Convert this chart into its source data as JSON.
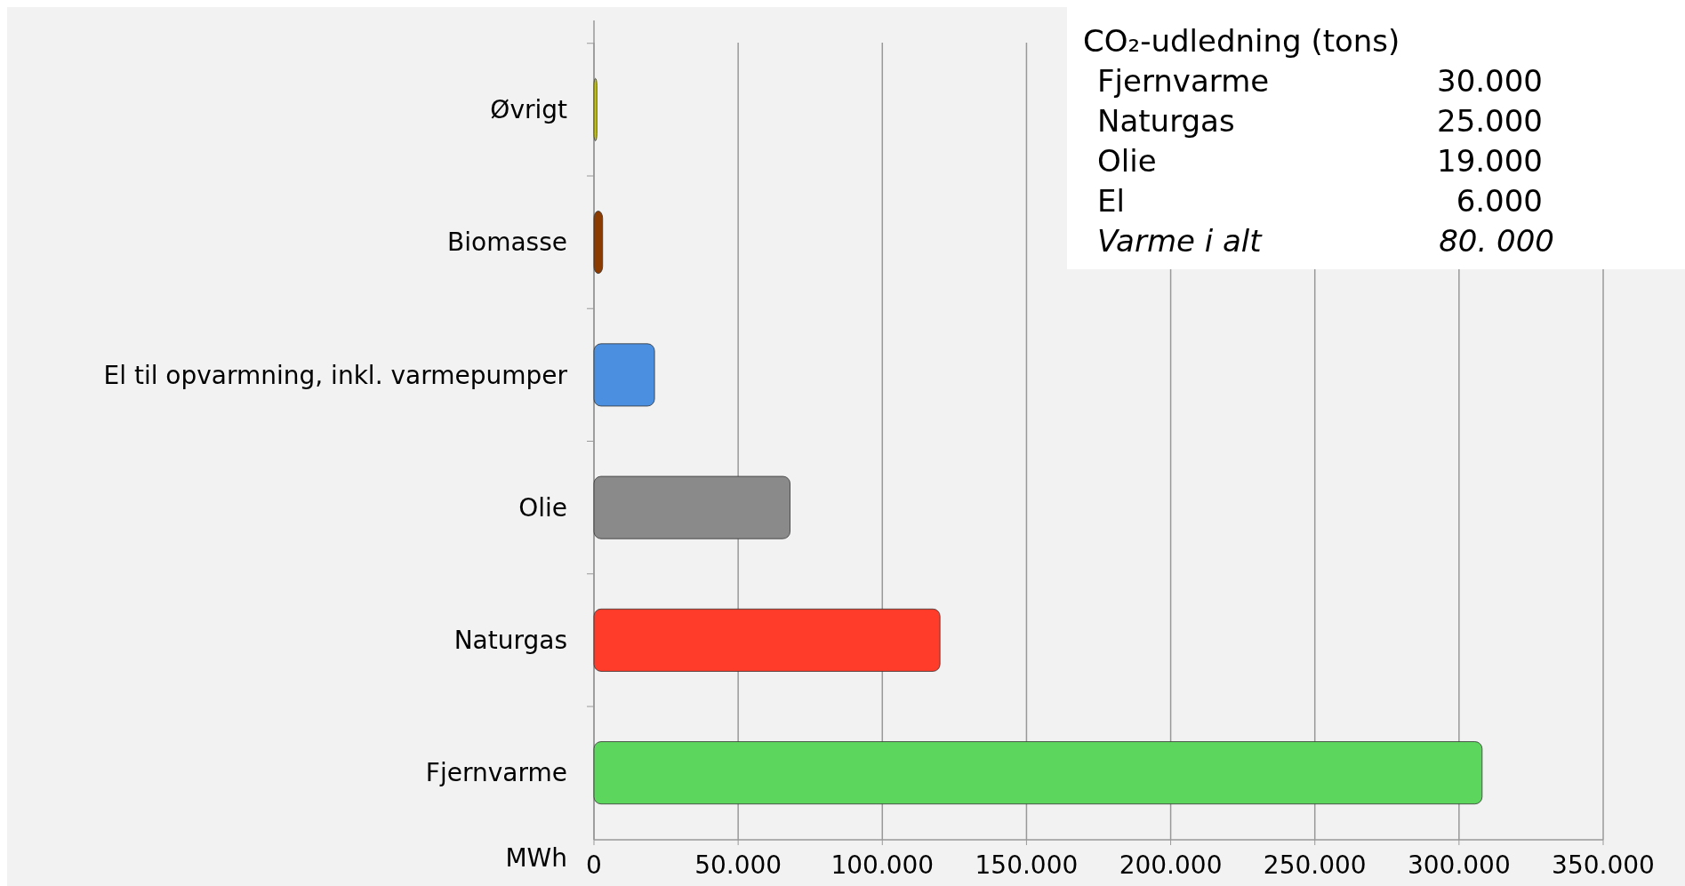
{
  "chart_data": {
    "type": "bar",
    "orientation": "horizontal",
    "categories": [
      "Øvrigt",
      "Biomasse",
      "El til opvarmning, inkl. varmepumper",
      "Olie",
      "Naturgas",
      "Fjernvarme"
    ],
    "values": [
      1000,
      3000,
      21000,
      68000,
      120000,
      308000
    ],
    "colors": [
      "#c8c800",
      "#8b3a00",
      "#4a8fe0",
      "#8a8a8a",
      "#ff3b2a",
      "#5cd65c"
    ],
    "xlabel": "MWh",
    "xlim": [
      0,
      350000
    ],
    "xticks": [
      0,
      {
        "value": 50000,
        "label": "50.000"
      },
      {
        "value": 100000,
        "label": "100.000"
      },
      {
        "value": 150000,
        "label": "150.000"
      },
      {
        "value": 200000,
        "label": "200.000"
      },
      {
        "value": 250000,
        "label": "250.000"
      },
      {
        "value": 300000,
        "label": "300.000"
      },
      {
        "value": 350000,
        "label": "350.000"
      }
    ],
    "grid": "x",
    "annotations": [
      "CO₂-udledning (tons)",
      "Fjernvarme",
      "30.000",
      "Naturgas",
      "25.000",
      "Olie",
      "19.000",
      "El",
      "6.000",
      "Varme i alt",
      "80. 000"
    ]
  }
}
